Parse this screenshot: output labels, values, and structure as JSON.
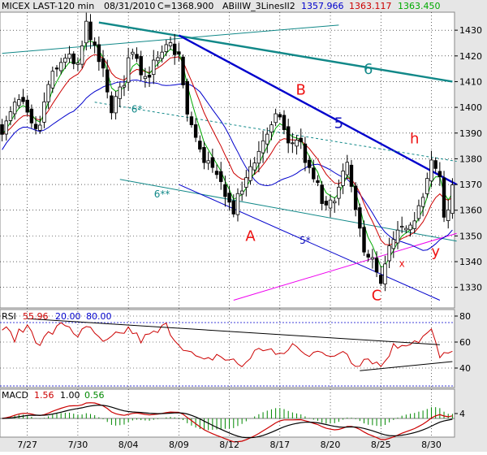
{
  "chart_data": {
    "type": "candlestick",
    "header": {
      "symbol": "MICEX LAST-120 min",
      "date": "08/31/2010",
      "close_label": "C=1368.900",
      "study": "ABillW_3LinesII2",
      "ma_values": [
        "1357.966",
        "1363.117",
        "1363.450"
      ],
      "colors": [
        "#0000cc",
        "#cc0000",
        "#00aa00"
      ]
    },
    "price_axis": {
      "min": 1322,
      "max": 1437,
      "ticks": [
        1330,
        1340,
        1350,
        1360,
        1370,
        1380,
        1390,
        1400,
        1410,
        1420,
        1430
      ],
      "tick_labels": [
        "1330",
        "1340",
        "1350",
        "1360",
        "1370",
        "1380",
        "1390",
        "1400",
        "1410",
        "1420",
        "1430"
      ]
    },
    "x_axis": {
      "labels": [
        "7/27",
        "7/30",
        "8/04",
        "8/09",
        "8/12",
        "8/17",
        "8/20",
        "8/25",
        "8/30"
      ],
      "label_bars": [
        6,
        18,
        30,
        42,
        54,
        66,
        78,
        90,
        102
      ],
      "bar_count": 108
    },
    "price_anchors": [
      [
        0,
        1392
      ],
      [
        4,
        1402
      ],
      [
        8,
        1390
      ],
      [
        12,
        1412
      ],
      [
        15,
        1420
      ],
      [
        18,
        1415
      ],
      [
        20,
        1432
      ],
      [
        23,
        1418
      ],
      [
        26,
        1400
      ],
      [
        28,
        1406
      ],
      [
        31,
        1423
      ],
      [
        34,
        1412
      ],
      [
        37,
        1418
      ],
      [
        40,
        1424
      ],
      [
        42,
        1420
      ],
      [
        44,
        1396
      ],
      [
        48,
        1380
      ],
      [
        52,
        1370
      ],
      [
        55,
        1360
      ],
      [
        57,
        1368
      ],
      [
        60,
        1380
      ],
      [
        63,
        1390
      ],
      [
        66,
        1397
      ],
      [
        68,
        1385
      ],
      [
        70,
        1388
      ],
      [
        74,
        1372
      ],
      [
        77,
        1360
      ],
      [
        80,
        1368
      ],
      [
        82,
        1378
      ],
      [
        84,
        1358
      ],
      [
        86,
        1346
      ],
      [
        88,
        1340
      ],
      [
        90,
        1330
      ],
      [
        92,
        1345
      ],
      [
        94,
        1350
      ],
      [
        97,
        1356
      ],
      [
        100,
        1364
      ],
      [
        102,
        1378
      ],
      [
        104,
        1373
      ],
      [
        105,
        1358
      ],
      [
        106,
        1362
      ],
      [
        107,
        1368
      ]
    ],
    "annotations": [
      {
        "text": "B",
        "bar": 71,
        "price": 1405,
        "color": "#ee1111"
      },
      {
        "text": "A",
        "bar": 59,
        "price": 1348,
        "color": "#ee1111"
      },
      {
        "text": "C",
        "bar": 89,
        "price": 1325,
        "color": "#ee1111"
      },
      {
        "text": "h",
        "bar": 98,
        "price": 1386,
        "color": "#ee1111"
      },
      {
        "text": "y",
        "bar": 103,
        "price": 1342,
        "color": "#ee1111"
      },
      {
        "text": "x",
        "bar": 95,
        "price": 1338,
        "color": "#ee1111"
      },
      {
        "text": "6",
        "bar": 87,
        "price": 1413,
        "color": "#118888"
      },
      {
        "text": "5",
        "bar": 80,
        "price": 1392,
        "color": "#1111bb"
      },
      {
        "text": "6*",
        "bar": 32,
        "price": 1398,
        "color": "#118888"
      },
      {
        "text": "6**",
        "bar": 38,
        "price": 1365,
        "color": "#118888"
      },
      {
        "text": "5*",
        "bar": 72,
        "price": 1347,
        "color": "#1111bb"
      }
    ],
    "trendlines": [
      {
        "name": "6",
        "color": "#118888",
        "width": 2.4,
        "from": [
          23,
          1433
        ],
        "to": [
          107,
          1410
        ]
      },
      {
        "name": "6 upper thin",
        "color": "#118888",
        "width": 1,
        "from": [
          0,
          1421
        ],
        "to": [
          80,
          1432
        ]
      },
      {
        "name": "5",
        "color": "#0000cc",
        "width": 2.4,
        "from": [
          42,
          1428
        ],
        "to": [
          108,
          1370
        ]
      },
      {
        "name": "6*",
        "color": "#118888",
        "width": 1,
        "dash": "3,3",
        "from": [
          22,
          1402
        ],
        "to": [
          108,
          1379
        ]
      },
      {
        "name": "6**",
        "color": "#118888",
        "width": 1,
        "from": [
          28,
          1372
        ],
        "to": [
          108,
          1348
        ]
      },
      {
        "name": "5*",
        "color": "#0000cc",
        "width": 1,
        "from": [
          42,
          1370
        ],
        "to": [
          104,
          1325
        ]
      },
      {
        "name": "magenta",
        "color": "#ee00ee",
        "width": 1,
        "from": [
          55,
          1325
        ],
        "to": [
          108,
          1351
        ]
      }
    ],
    "rsi": {
      "label": "RSI",
      "values_text": [
        "55.96",
        "20.00",
        "80.00"
      ],
      "colors": [
        "#cc0000",
        "#0000cc",
        "#0000cc"
      ],
      "ticks": [
        40,
        60,
        80
      ],
      "tick_labels": [
        "40",
        "60",
        "80"
      ],
      "min": 25,
      "max": 85,
      "anchors": [
        [
          0,
          70
        ],
        [
          3,
          64
        ],
        [
          6,
          72
        ],
        [
          9,
          60
        ],
        [
          12,
          68
        ],
        [
          15,
          74
        ],
        [
          18,
          66
        ],
        [
          21,
          70
        ],
        [
          24,
          58
        ],
        [
          27,
          64
        ],
        [
          30,
          70
        ],
        [
          33,
          62
        ],
        [
          36,
          66
        ],
        [
          39,
          72
        ],
        [
          42,
          60
        ],
        [
          45,
          50
        ],
        [
          48,
          44
        ],
        [
          51,
          50
        ],
        [
          54,
          46
        ],
        [
          57,
          42
        ],
        [
          60,
          52
        ],
        [
          63,
          56
        ],
        [
          66,
          48
        ],
        [
          69,
          58
        ],
        [
          72,
          50
        ],
        [
          75,
          56
        ],
        [
          78,
          46
        ],
        [
          81,
          54
        ],
        [
          84,
          44
        ],
        [
          87,
          48
        ],
        [
          90,
          42
        ],
        [
          93,
          56
        ],
        [
          96,
          60
        ],
        [
          99,
          62
        ],
        [
          102,
          68
        ],
        [
          104,
          48
        ],
        [
          106,
          50
        ],
        [
          107,
          56
        ]
      ],
      "lines": [
        {
          "color": "#000000",
          "from": [
            6,
            78
          ],
          "to": [
            104,
            58
          ]
        },
        {
          "color": "#000000",
          "from": [
            85,
            38
          ],
          "to": [
            107,
            45
          ]
        }
      ]
    },
    "macd": {
      "label": "MACD",
      "values_text": [
        "1.56",
        "1.00",
        "0.56"
      ],
      "colors": [
        "#cc0000",
        "#000000",
        "#008800"
      ],
      "ticks": [
        4
      ],
      "tick_labels": [
        "4"
      ]
    }
  }
}
